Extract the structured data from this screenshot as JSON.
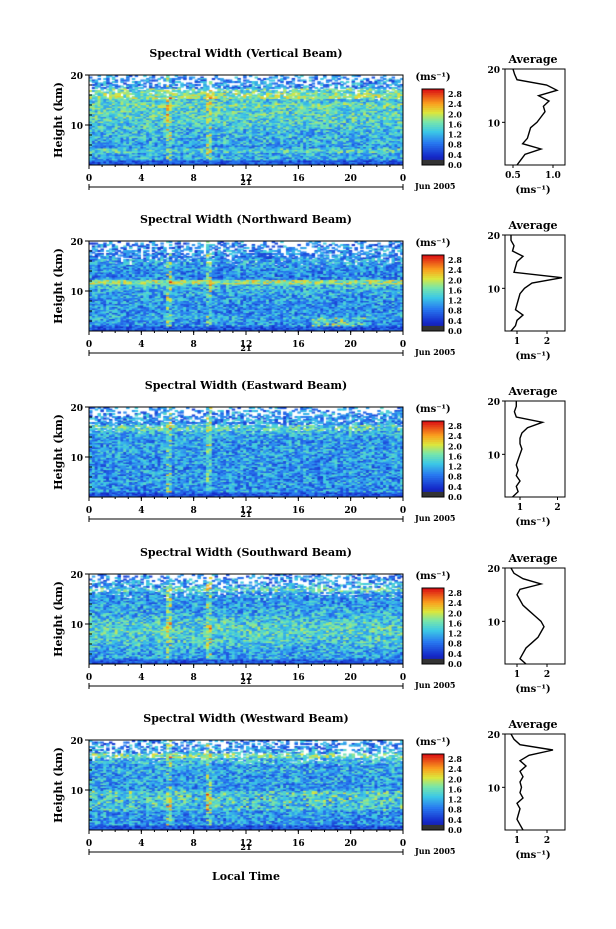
{
  "chart_data": {
    "type": "heatmap",
    "common": {
      "ylabel": "Height (km)",
      "xlabel": "Local Time",
      "x_ticks": [
        "0",
        "4",
        "8",
        "12",
        "16",
        "20",
        "0"
      ],
      "y_ticks": [
        "20",
        "10"
      ],
      "xlim": [
        0,
        24
      ],
      "ylim": [
        2,
        20
      ],
      "date_day": "21",
      "date_month_year": "Jun 2005",
      "colorbar_unit": "(ms⁻¹)",
      "colorbar_ticks": [
        "2.8",
        "2.4",
        "2.0",
        "1.6",
        "1.2",
        "0.8",
        "0.4",
        "0.0"
      ],
      "colorbar_range": [
        0,
        3.0
      ],
      "profile_title": "Average",
      "profile_xlabel": "(ms⁻¹)",
      "colors": {
        "low": "#1b1e80",
        "mid": "#2fd0d8",
        "high": "#e81e14"
      }
    },
    "panels": [
      {
        "title": "Spectral Width (Vertical Beam)",
        "profile_xlim": [
          0.4,
          1.15
        ],
        "profile_xticks": [
          "0.5",
          "1.0"
        ],
        "profile_xtick_values": [
          0.5,
          1.0
        ],
        "profile_y": [
          2,
          3,
          4,
          5,
          6,
          7,
          8,
          9,
          10,
          11,
          12,
          13,
          14,
          15,
          16,
          17,
          18,
          19,
          20
        ],
        "profile_x": [
          0.55,
          0.6,
          0.65,
          0.85,
          0.62,
          0.68,
          0.7,
          0.72,
          0.8,
          0.85,
          0.9,
          0.88,
          0.95,
          0.82,
          1.05,
          0.92,
          0.55,
          0.52,
          0.5
        ],
        "grid": false
      },
      {
        "title": "Spectral Width (Northward Beam)",
        "profile_xlim": [
          0.6,
          2.6
        ],
        "profile_xticks": [
          "1",
          "2"
        ],
        "profile_xtick_values": [
          1,
          2
        ],
        "profile_y": [
          2,
          3,
          4,
          5,
          6,
          7,
          8,
          9,
          10,
          11,
          12,
          13,
          14,
          15,
          16,
          17,
          18,
          19,
          20
        ],
        "profile_x": [
          0.8,
          0.95,
          1.0,
          1.2,
          0.95,
          1.0,
          1.05,
          1.1,
          1.25,
          1.5,
          2.5,
          0.9,
          0.95,
          1.0,
          1.2,
          0.85,
          0.9,
          0.8,
          0.8
        ],
        "grid": false
      },
      {
        "title": "Spectral Width (Eastward Beam)",
        "profile_xlim": [
          0.6,
          2.2
        ],
        "profile_xticks": [
          "1",
          "2"
        ],
        "profile_xtick_values": [
          1,
          2
        ],
        "profile_y": [
          2,
          3,
          4,
          5,
          6,
          7,
          8,
          9,
          10,
          11,
          12,
          13,
          14,
          15,
          16,
          17,
          18,
          19,
          20
        ],
        "profile_x": [
          0.8,
          0.95,
          0.9,
          1.0,
          0.9,
          0.95,
          0.9,
          0.95,
          1.0,
          1.05,
          1.0,
          1.0,
          1.05,
          1.2,
          1.6,
          0.9,
          0.85,
          0.9,
          0.9
        ],
        "grid": false
      },
      {
        "title": "Spectral Width (Southward Beam)",
        "profile_xlim": [
          0.6,
          2.6
        ],
        "profile_xticks": [
          "1",
          "2"
        ],
        "profile_xtick_values": [
          1,
          2
        ],
        "profile_y": [
          2,
          3,
          4,
          5,
          6,
          7,
          8,
          9,
          10,
          11,
          12,
          13,
          14,
          15,
          16,
          17,
          18,
          19,
          20
        ],
        "profile_x": [
          1.3,
          1.1,
          1.2,
          1.3,
          1.5,
          1.7,
          1.8,
          1.9,
          1.8,
          1.6,
          1.4,
          1.2,
          1.1,
          1.0,
          1.1,
          1.8,
          1.2,
          0.9,
          0.8
        ],
        "grid": false
      },
      {
        "title": "Spectral Width (Westward Beam)",
        "profile_xlim": [
          0.6,
          2.6
        ],
        "profile_xticks": [
          "1",
          "2"
        ],
        "profile_xtick_values": [
          1,
          2
        ],
        "profile_y": [
          2,
          3,
          4,
          5,
          6,
          7,
          8,
          9,
          10,
          11,
          12,
          13,
          14,
          15,
          16,
          17,
          18,
          19,
          20
        ],
        "profile_x": [
          1.2,
          1.1,
          1.0,
          1.05,
          1.1,
          1.0,
          1.2,
          1.1,
          1.15,
          1.1,
          1.2,
          1.1,
          1.3,
          1.1,
          1.4,
          2.2,
          1.1,
          0.9,
          0.8
        ],
        "grid": false
      }
    ]
  }
}
